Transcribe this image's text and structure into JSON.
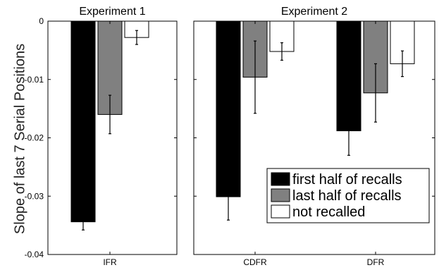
{
  "chart_data": {
    "type": "bar",
    "ylabel": "Slope of last 7 Serial Positions",
    "ylim": [
      -0.04,
      0
    ],
    "yticks": [
      0,
      -0.01,
      -0.02,
      -0.03,
      -0.04
    ],
    "ytick_labels": [
      "0",
      "-0.01",
      "-0.02",
      "-0.03",
      "-0.04"
    ],
    "grid": false,
    "legend_placement": "bottom-right",
    "series": [
      {
        "name": "first half of recalls",
        "color": "#000000"
      },
      {
        "name": "last half of recalls",
        "color": "#808080"
      },
      {
        "name": "not recalled",
        "color": "#ffffff"
      }
    ],
    "panels": [
      {
        "title": "Experiment 1",
        "categories": [
          "IFR"
        ],
        "values": [
          [
            -0.0344,
            -0.016,
            -0.0028
          ]
        ],
        "errors": [
          [
            0.0014,
            0.0033,
            0.0012
          ]
        ]
      },
      {
        "title": "Experiment 2",
        "categories": [
          "CDFR",
          "DFR"
        ],
        "values": [
          [
            -0.0301,
            -0.0096,
            -0.0052
          ],
          [
            -0.0188,
            -0.0123,
            -0.0073
          ]
        ],
        "errors": [
          [
            0.004,
            0.0062,
            0.0015
          ],
          [
            0.0042,
            0.005,
            0.0022
          ]
        ]
      }
    ]
  }
}
